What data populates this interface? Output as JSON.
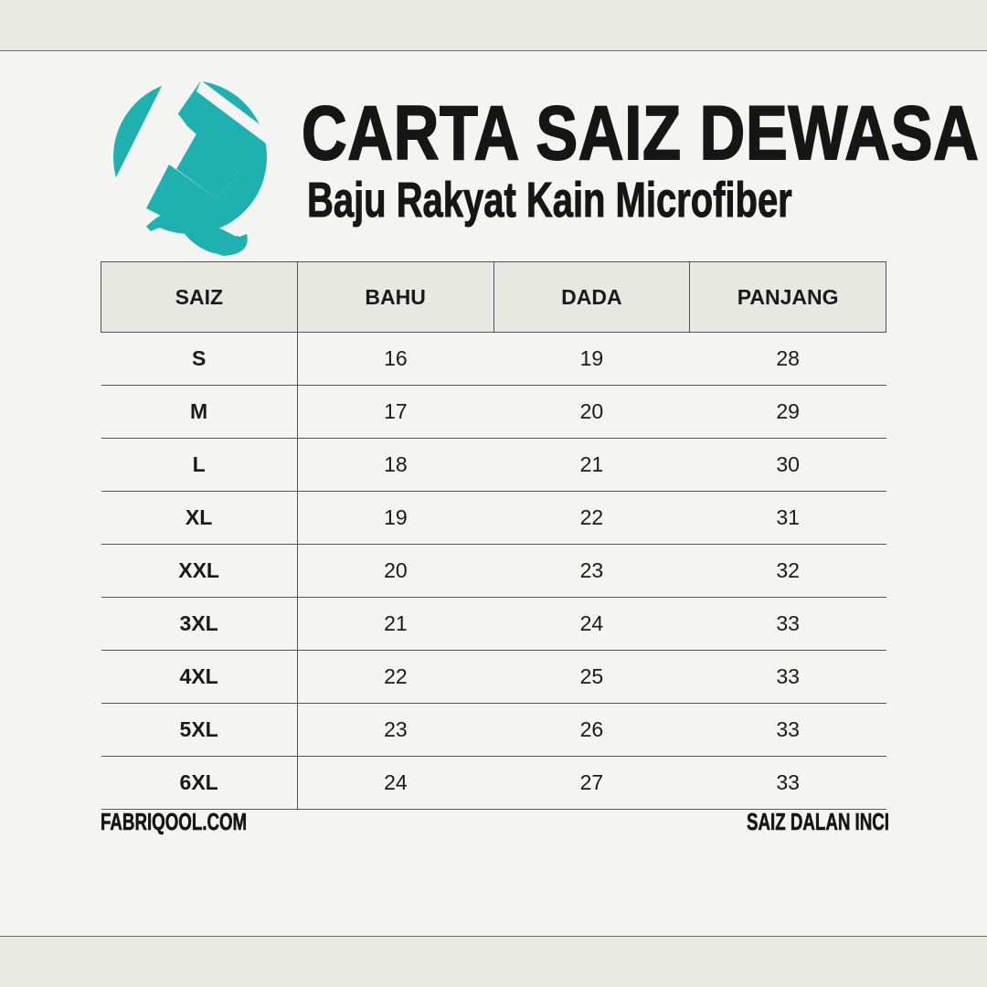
{
  "brand": {
    "logo_icon": "fabriqool-logo",
    "color": "#1fb1b0"
  },
  "header": {
    "title": "CARTA SAIZ DEWASA",
    "subtitle": "Baju Rakyat Kain Microfiber"
  },
  "table": {
    "columns": [
      "SAIZ",
      "BAHU",
      "DADA",
      "PANJANG"
    ],
    "rows": [
      [
        "S",
        "16",
        "19",
        "28"
      ],
      [
        "M",
        "17",
        "20",
        "29"
      ],
      [
        "L",
        "18",
        "21",
        "30"
      ],
      [
        "XL",
        "19",
        "22",
        "31"
      ],
      [
        "XXL",
        "20",
        "23",
        "32"
      ],
      [
        "3XL",
        "21",
        "24",
        "33"
      ],
      [
        "4XL",
        "22",
        "25",
        "33"
      ],
      [
        "5XL",
        "23",
        "26",
        "33"
      ],
      [
        "6XL",
        "24",
        "27",
        "33"
      ]
    ]
  },
  "footer": {
    "website": "FABRIQOOL.COM",
    "unit_note": "SAIZ DALAN INCI"
  }
}
